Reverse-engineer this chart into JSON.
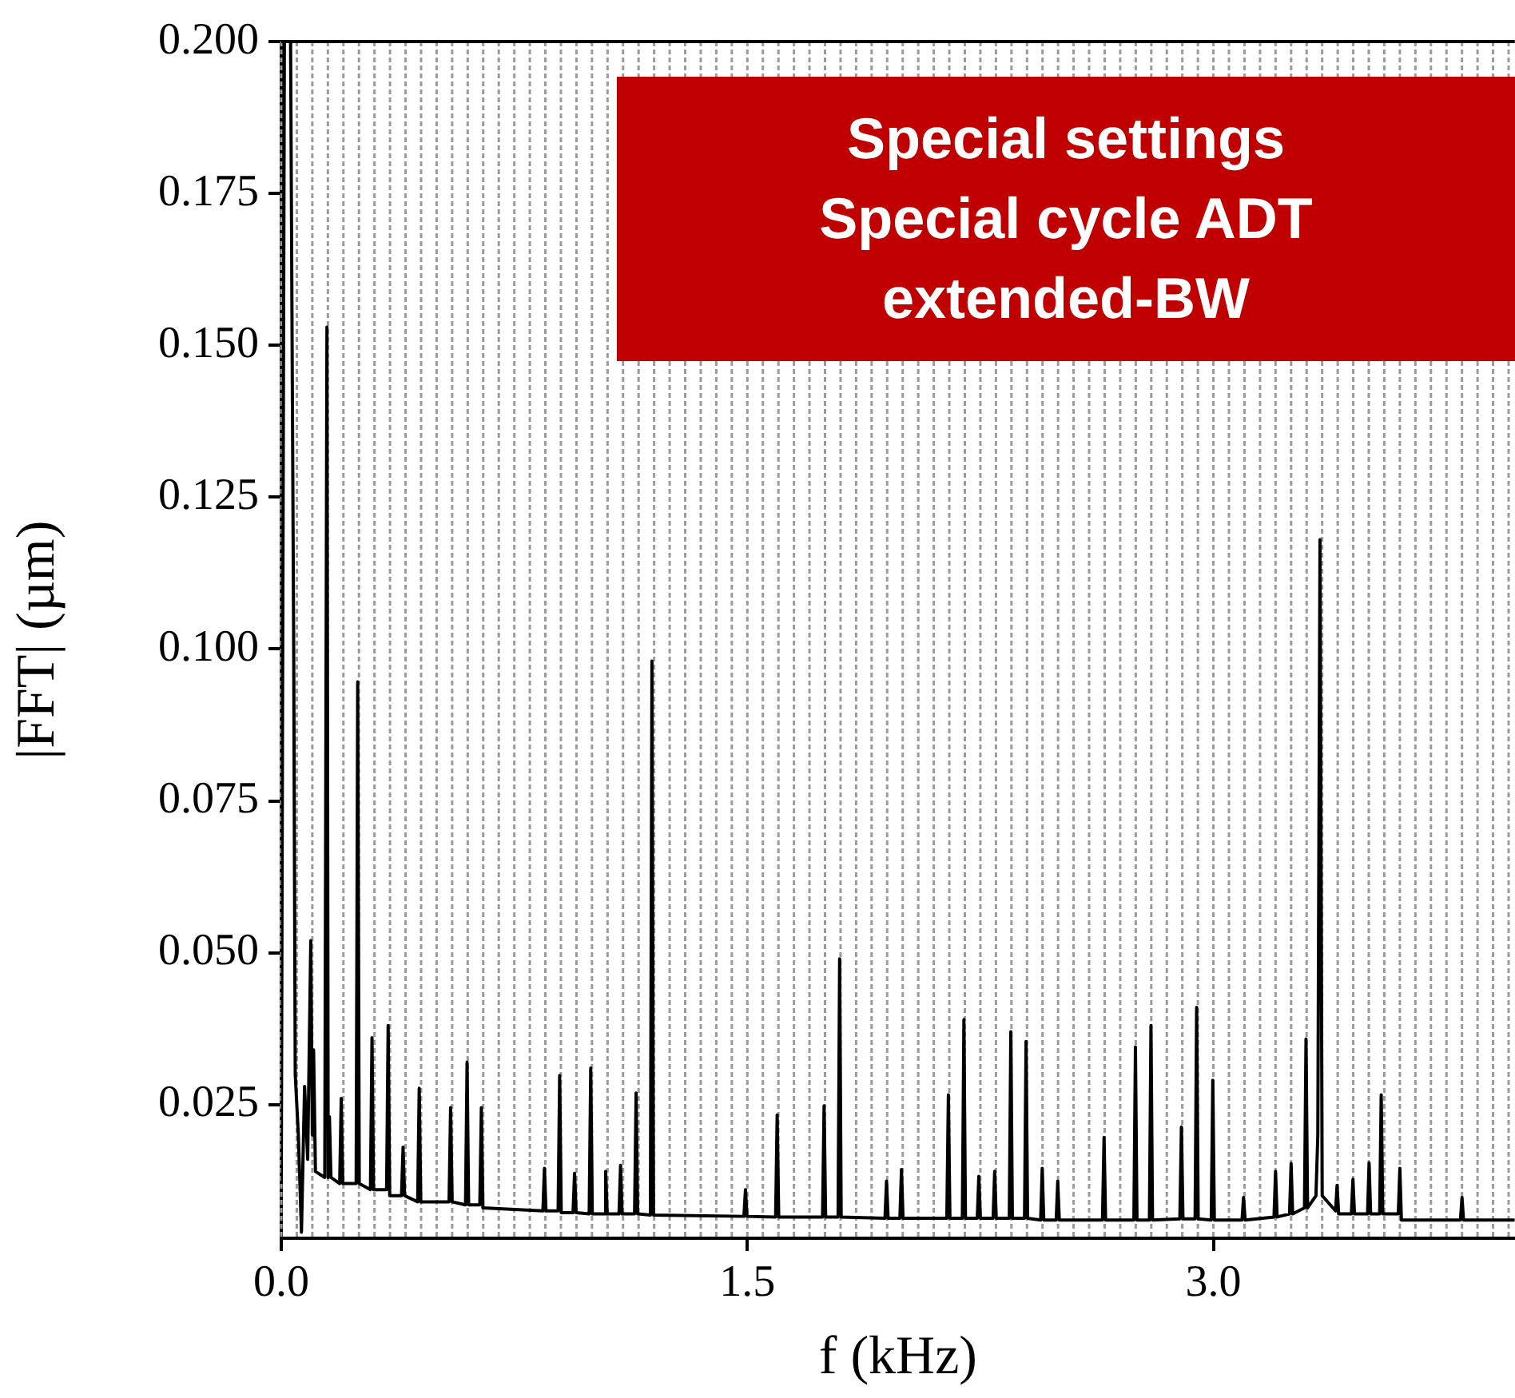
{
  "chart_data": {
    "type": "line",
    "xlabel": "f (kHz)",
    "ylabel": "|FFT| (µm)",
    "annotations": [
      "Special settings\nSpecial cycle ADT\nextended-BW"
    ],
    "xlim": [
      0,
      3.97
    ],
    "ylim": [
      0.003,
      0.2
    ],
    "xticks": [
      {
        "value": 0,
        "label": "0.0"
      },
      {
        "value": 0.05,
        "label": null
      },
      {
        "value": 0.1,
        "label": null
      },
      {
        "value": 0.15,
        "label": null
      },
      {
        "value": 0.2,
        "label": null
      },
      {
        "value": 0.25,
        "label": null
      },
      {
        "value": 0.3,
        "label": null
      },
      {
        "value": 0.35,
        "label": null
      },
      {
        "value": 0.4,
        "label": null
      },
      {
        "value": 0.45,
        "label": null
      },
      {
        "value": 0.5,
        "label": null
      },
      {
        "value": 0.55,
        "label": null
      },
      {
        "value": 0.6,
        "label": null
      },
      {
        "value": 0.65,
        "label": null
      },
      {
        "value": 0.7,
        "label": null
      },
      {
        "value": 0.75,
        "label": null
      },
      {
        "value": 0.8,
        "label": null
      },
      {
        "value": 0.85,
        "label": null
      },
      {
        "value": 0.9,
        "label": null
      },
      {
        "value": 0.95,
        "label": null
      },
      {
        "value": 1.0,
        "label": null
      },
      {
        "value": 1.05,
        "label": null
      },
      {
        "value": 1.1,
        "label": null
      },
      {
        "value": 1.15,
        "label": null
      },
      {
        "value": 1.2,
        "label": null
      },
      {
        "value": 1.25,
        "label": null
      },
      {
        "value": 1.3,
        "label": null
      },
      {
        "value": 1.35,
        "label": null
      },
      {
        "value": 1.4,
        "label": null
      },
      {
        "value": 1.45,
        "label": null
      },
      1.5,
      {
        "value": 1.55,
        "label": null
      },
      {
        "value": 1.6,
        "label": null
      },
      {
        "value": 1.65,
        "label": null
      },
      {
        "value": 1.7,
        "label": null
      },
      {
        "value": 1.75,
        "label": null
      },
      {
        "value": 1.8,
        "label": null
      },
      {
        "value": 1.85,
        "label": null
      },
      {
        "value": 1.9,
        "label": null
      },
      {
        "value": 1.95,
        "label": null
      },
      {
        "value": 2.0,
        "label": null
      },
      {
        "value": 2.05,
        "label": null
      },
      {
        "value": 2.1,
        "label": null
      },
      {
        "value": 2.15,
        "label": null
      },
      {
        "value": 2.2,
        "label": null
      },
      {
        "value": 2.25,
        "label": null
      },
      {
        "value": 2.3,
        "label": null
      },
      {
        "value": 2.35,
        "label": null
      },
      {
        "value": 2.4,
        "label": null
      },
      {
        "value": 2.45,
        "label": null
      },
      {
        "value": 2.5,
        "label": null
      },
      {
        "value": 2.55,
        "label": null
      },
      {
        "value": 2.6,
        "label": null
      },
      {
        "value": 2.65,
        "label": null
      },
      {
        "value": 2.7,
        "label": null
      },
      {
        "value": 2.75,
        "label": null
      },
      {
        "value": 2.8,
        "label": null
      },
      {
        "value": 2.85,
        "label": null
      },
      {
        "value": 2.9,
        "label": null
      },
      {
        "value": 2.95,
        "label": null
      },
      {
        "value": 3,
        "label": "3.0"
      },
      {
        "value": 3.05,
        "label": null
      },
      {
        "value": 3.1,
        "label": null
      },
      {
        "value": 3.15,
        "label": null
      },
      {
        "value": 3.2,
        "label": null
      },
      {
        "value": 3.25,
        "label": null
      },
      {
        "value": 3.3,
        "label": null
      },
      {
        "value": 3.35,
        "label": null
      },
      {
        "value": 3.4,
        "label": null
      },
      {
        "value": 3.45,
        "label": null
      },
      {
        "value": 3.5,
        "label": null
      },
      {
        "value": 3.55,
        "label": null
      },
      {
        "value": 3.6,
        "label": null
      },
      {
        "value": 3.65,
        "label": null
      },
      {
        "value": 3.7,
        "label": null
      },
      {
        "value": 3.75,
        "label": null
      },
      {
        "value": 3.8,
        "label": null
      },
      {
        "value": 3.85,
        "label": null
      },
      {
        "value": 3.9,
        "label": null
      },
      {
        "value": 3.95,
        "label": null
      }
    ],
    "yticks": [
      0.025,
      {
        "value": 0.05,
        "label": "0.050"
      },
      0.075,
      {
        "value": 0.1,
        "label": "0.100"
      },
      0.125,
      {
        "value": 0.15,
        "label": "0.150"
      },
      0.175,
      {
        "value": 0.2,
        "label": "0.200"
      }
    ],
    "grid": "x",
    "marker": "none",
    "line_style": "solid",
    "legend": false,
    "series": [
      {
        "color": "#000000",
        "x": [
          0,
          0.01,
          0.03,
          0.04,
          0.045,
          0.055,
          0.065,
          0.075,
          0.085,
          0.095,
          0.1,
          0.104,
          0.11,
          0.14,
          0.147,
          0.151,
          0.155,
          0.16,
          0.188,
          0.193,
          0.198,
          0.241,
          0.246,
          0.251,
          0.287,
          0.292,
          0.297,
          0.339,
          0.344,
          0.349,
          0.387,
          0.392,
          0.397,
          0.439,
          0.444,
          0.449,
          0.54,
          0.545,
          0.55,
          0.593,
          0.598,
          0.603,
          0.639,
          0.644,
          0.649,
          0.842,
          0.847,
          0.852,
          0.891,
          0.896,
          0.901,
          0.939,
          0.944,
          0.949,
          0.991,
          0.996,
          1.001,
          1.039,
          1.044,
          1.049,
          1.087,
          1.092,
          1.097,
          1.137,
          1.142,
          1.147,
          1.188,
          1.193,
          1.198,
          1.489,
          1.494,
          1.499,
          1.591,
          1.596,
          1.601,
          1.742,
          1.747,
          1.752,
          1.792,
          1.797,
          1.802,
          1.943,
          1.948,
          1.953,
          1.991,
          1.996,
          2.001,
          2.142,
          2.147,
          2.152,
          2.192,
          2.197,
          2.202,
          2.24,
          2.245,
          2.25,
          2.291,
          2.296,
          2.301,
          2.343,
          2.348,
          2.353,
          2.392,
          2.397,
          2.402,
          2.444,
          2.449,
          2.454,
          2.494,
          2.499,
          2.504,
          2.643,
          2.648,
          2.653,
          2.744,
          2.749,
          2.754,
          2.794,
          2.799,
          2.804,
          2.892,
          2.897,
          2.902,
          2.941,
          2.946,
          2.951,
          2.993,
          2.998,
          3.003,
          3.092,
          3.097,
          3.102,
          3.195,
          3.2,
          3.205,
          3.245,
          3.25,
          3.255,
          3.293,
          3.298,
          3.303,
          3.33,
          3.336,
          3.343,
          3.35,
          3.393,
          3.398,
          3.403,
          3.444,
          3.449,
          3.454,
          3.496,
          3.501,
          3.506,
          3.535,
          3.54,
          3.545,
          3.595,
          3.6,
          3.605,
          3.795,
          3.8,
          3.805,
          3.97
        ],
        "values": [
          0.012,
          0.2,
          0.2,
          0.1,
          0.03,
          0.02,
          0.004,
          0.028,
          0.016,
          0.052,
          0.02,
          0.034,
          0.014,
          0.013,
          0.153,
          0.013,
          0.023,
          0.013,
          0.012,
          0.026,
          0.012,
          0.012,
          0.0946,
          0.012,
          0.011,
          0.036,
          0.011,
          0.011,
          0.038,
          0.01,
          0.01,
          0.018,
          0.01,
          0.009,
          0.0277,
          0.009,
          0.009,
          0.0245,
          0.009,
          0.0085,
          0.032,
          0.0085,
          0.0085,
          0.0245,
          0.008,
          0.0075,
          0.0145,
          0.0075,
          0.0075,
          0.0298,
          0.0072,
          0.0072,
          0.0137,
          0.0072,
          0.007,
          0.031,
          0.007,
          0.007,
          0.014,
          0.007,
          0.007,
          0.015,
          0.007,
          0.007,
          0.0269,
          0.007,
          0.0068,
          0.098,
          0.0068,
          0.0066,
          0.011,
          0.0066,
          0.0065,
          0.0233,
          0.0065,
          0.0065,
          0.0248,
          0.0065,
          0.0065,
          0.049,
          0.0065,
          0.0063,
          0.0124,
          0.0063,
          0.0063,
          0.0143,
          0.0063,
          0.0063,
          0.0266,
          0.0063,
          0.0063,
          0.039,
          0.0063,
          0.0063,
          0.0132,
          0.0063,
          0.0063,
          0.014,
          0.0063,
          0.0063,
          0.037,
          0.0063,
          0.0063,
          0.0354,
          0.0063,
          0.006,
          0.0145,
          0.006,
          0.006,
          0.0124,
          0.006,
          0.006,
          0.0196,
          0.006,
          0.006,
          0.0345,
          0.006,
          0.006,
          0.038,
          0.006,
          0.0062,
          0.0213,
          0.0062,
          0.0062,
          0.041,
          0.0062,
          0.006,
          0.029,
          0.006,
          0.006,
          0.0097,
          0.006,
          0.0065,
          0.014,
          0.0065,
          0.007,
          0.0153,
          0.007,
          0.008,
          0.0358,
          0.008,
          0.01,
          0.02,
          0.118,
          0.01,
          0.0075,
          0.0117,
          0.007,
          0.007,
          0.0127,
          0.007,
          0.007,
          0.0154,
          0.007,
          0.007,
          0.0266,
          0.007,
          0.007,
          0.0145,
          0.006,
          0.006,
          0.0097,
          0.006,
          0.006
        ]
      }
    ]
  }
}
